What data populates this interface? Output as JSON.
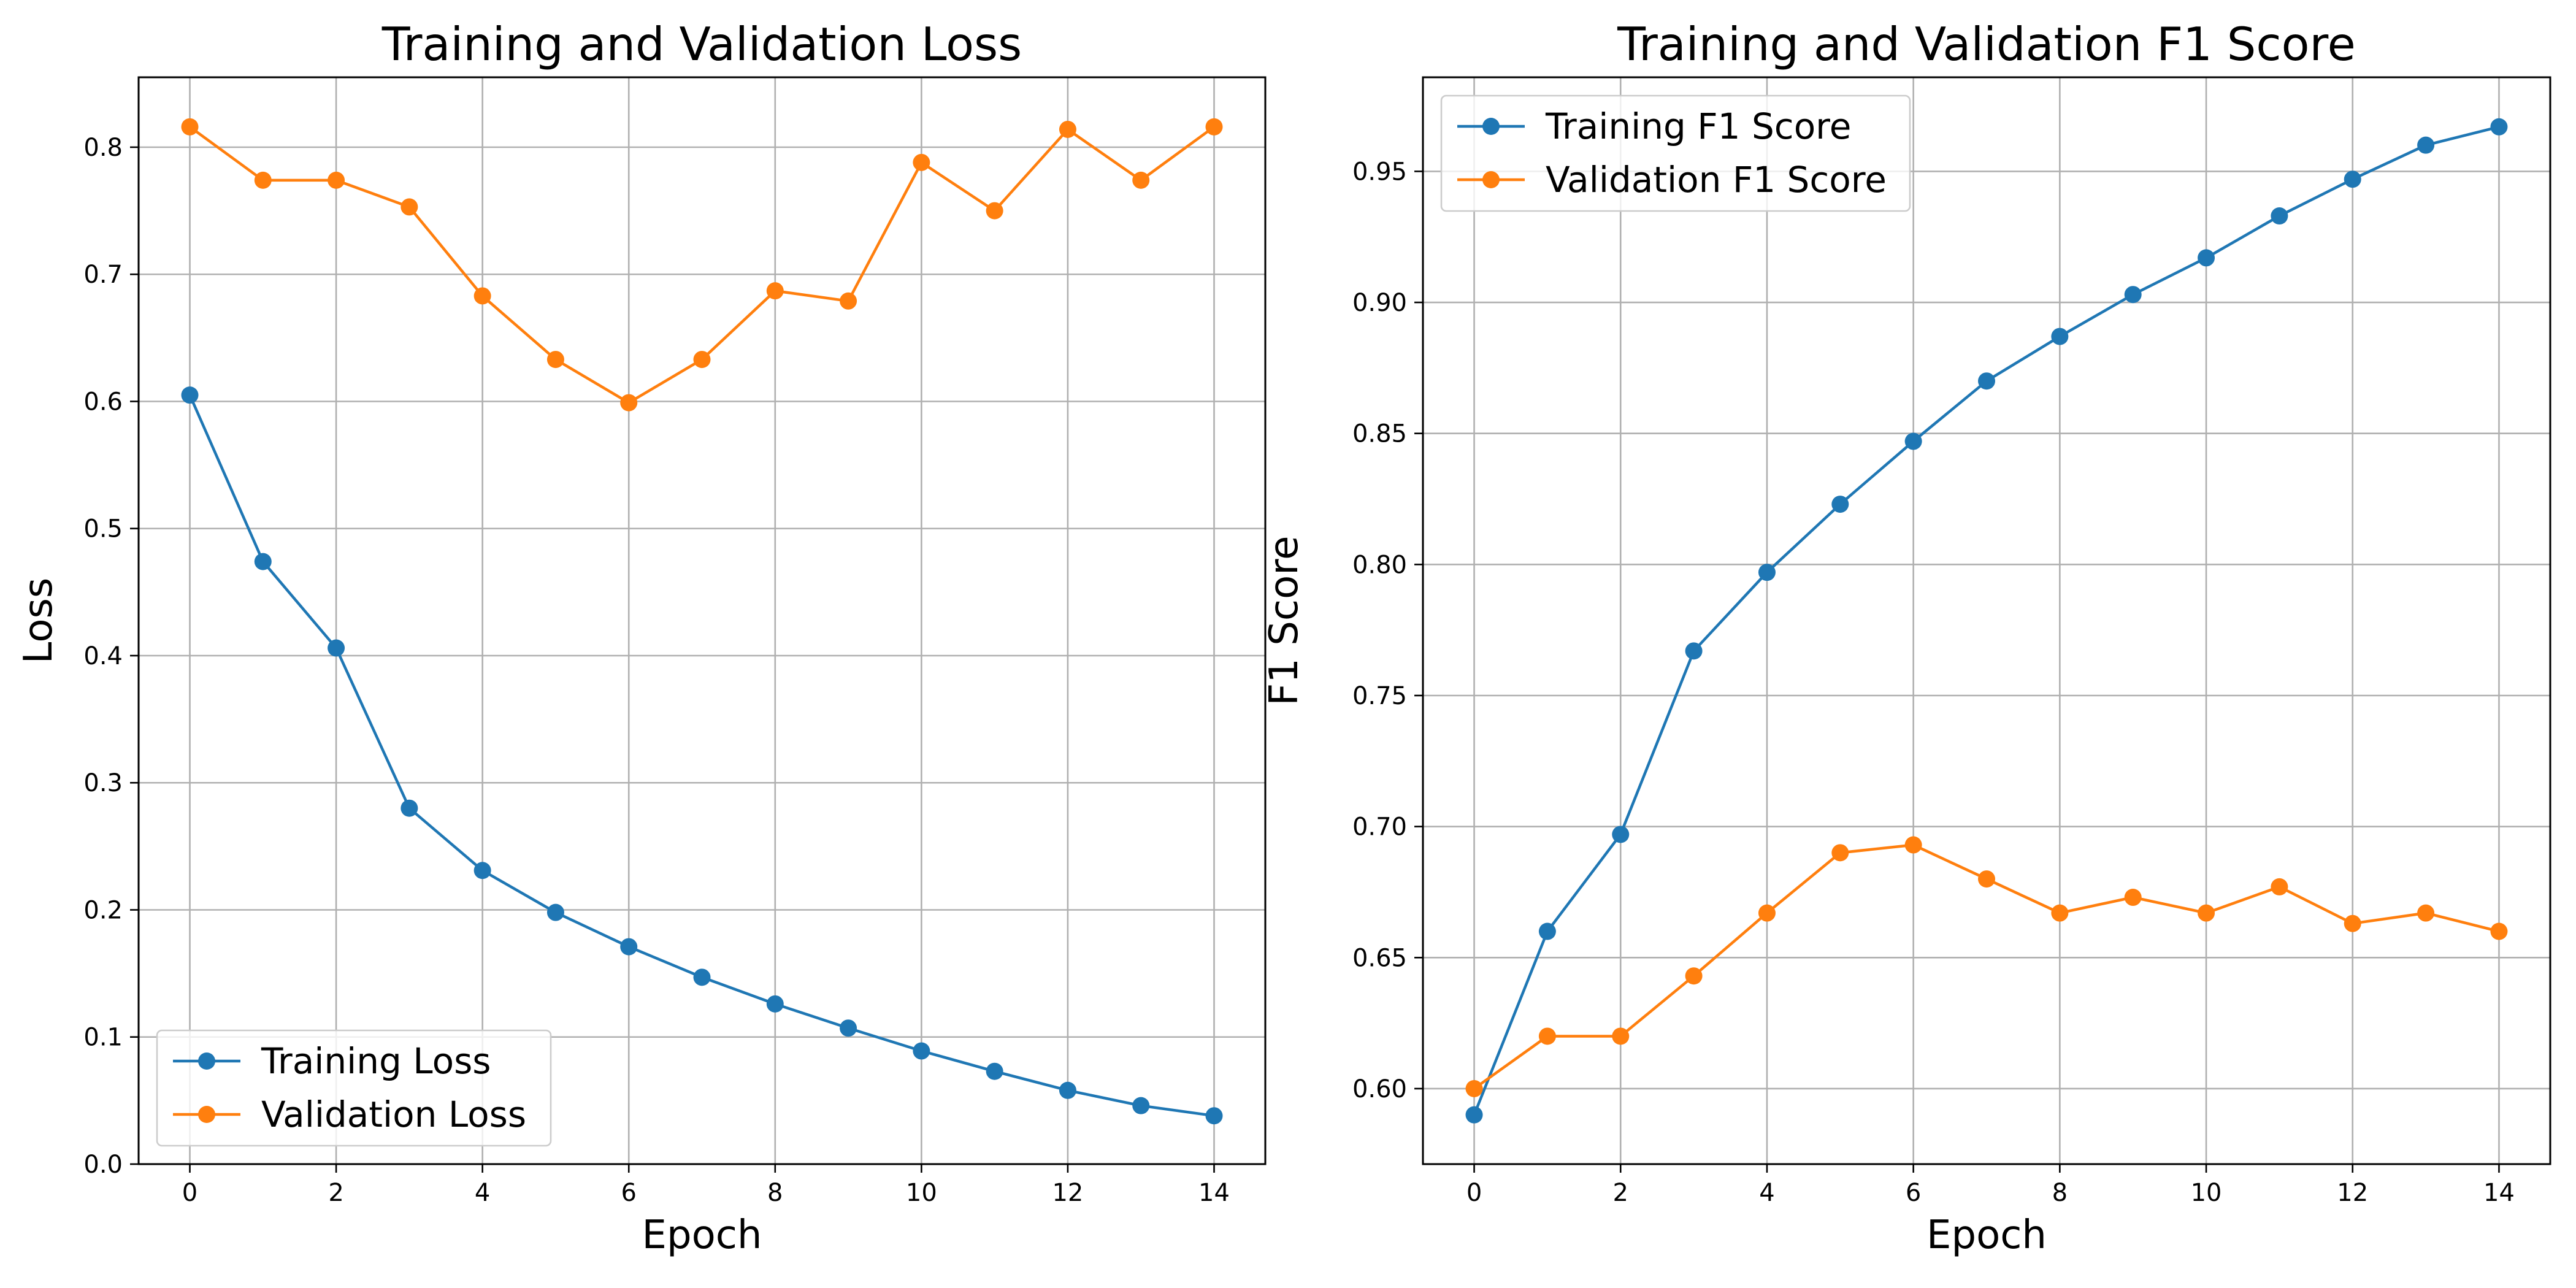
{
  "chart_data": [
    {
      "type": "line",
      "title": "Training and Validation Loss",
      "xlabel": "Epoch",
      "ylabel": "Loss",
      "x": [
        0,
        1,
        2,
        3,
        4,
        5,
        6,
        7,
        8,
        9,
        10,
        11,
        12,
        13,
        14
      ],
      "xlim": [
        -0.7,
        14.7
      ],
      "ylim": [
        0.0,
        0.855
      ],
      "xticks": [
        0,
        2,
        4,
        6,
        8,
        10,
        12,
        14
      ],
      "yticks": [
        0.0,
        0.1,
        0.2,
        0.3,
        0.4,
        0.5,
        0.6,
        0.7,
        0.8
      ],
      "xtick_labels": [
        "0",
        "2",
        "4",
        "6",
        "8",
        "10",
        "12",
        "14"
      ],
      "ytick_labels": [
        "0.0",
        "0.1",
        "0.2",
        "0.3",
        "0.4",
        "0.5",
        "0.6",
        "0.7",
        "0.8"
      ],
      "grid": true,
      "legend_position": "lower-left",
      "series": [
        {
          "name": "Training Loss",
          "color": "#1f77b4",
          "values": [
            0.605,
            0.474,
            0.406,
            0.28,
            0.231,
            0.198,
            0.171,
            0.147,
            0.126,
            0.107,
            0.089,
            0.073,
            0.058,
            0.046,
            0.038
          ]
        },
        {
          "name": "Validation Loss",
          "color": "#ff7f0e",
          "values": [
            0.816,
            0.774,
            0.774,
            0.753,
            0.683,
            0.633,
            0.599,
            0.633,
            0.687,
            0.679,
            0.788,
            0.75,
            0.814,
            0.774,
            0.816
          ]
        }
      ]
    },
    {
      "type": "line",
      "title": "Training and Validation F1 Score",
      "xlabel": "Epoch",
      "ylabel": "F1 Score",
      "x": [
        0,
        1,
        2,
        3,
        4,
        5,
        6,
        7,
        8,
        9,
        10,
        11,
        12,
        13,
        14
      ],
      "xlim": [
        -0.7,
        14.7
      ],
      "ylim": [
        0.5712,
        0.9859
      ],
      "xticks": [
        0,
        2,
        4,
        6,
        8,
        10,
        12,
        14
      ],
      "yticks": [
        0.6,
        0.65,
        0.7,
        0.75,
        0.8,
        0.85,
        0.9,
        0.95
      ],
      "xtick_labels": [
        "0",
        "2",
        "4",
        "6",
        "8",
        "10",
        "12",
        "14"
      ],
      "ytick_labels": [
        "0.60",
        "0.65",
        "0.70",
        "0.75",
        "0.80",
        "0.85",
        "0.90",
        "0.95"
      ],
      "grid": true,
      "legend_position": "upper-left",
      "series": [
        {
          "name": "Training F1 Score",
          "color": "#1f77b4",
          "values": [
            0.59,
            0.66,
            0.697,
            0.767,
            0.797,
            0.823,
            0.847,
            0.87,
            0.887,
            0.903,
            0.917,
            0.933,
            0.947,
            0.96,
            0.967
          ]
        },
        {
          "name": "Validation F1 Score",
          "color": "#ff7f0e",
          "values": [
            0.6,
            0.62,
            0.62,
            0.643,
            0.667,
            0.69,
            0.693,
            0.68,
            0.667,
            0.673,
            0.667,
            0.677,
            0.663,
            0.667,
            0.66
          ]
        }
      ]
    }
  ]
}
